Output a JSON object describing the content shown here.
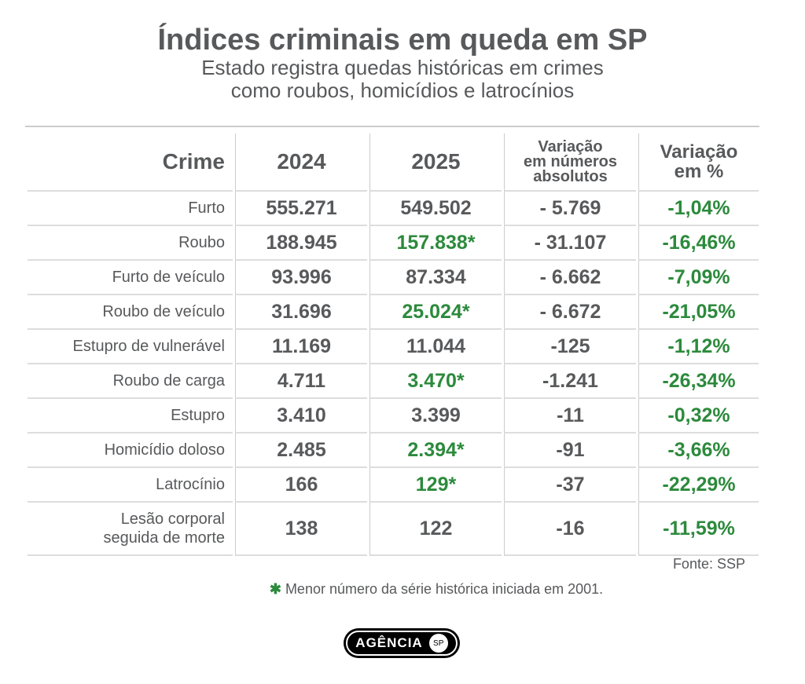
{
  "title": "Índices criminais em queda em SP",
  "subtitle_line1": "Estado registra quedas históricas em crimes",
  "subtitle_line2": "como roubos, homicídios e latrocínios",
  "colors": {
    "text": "#58595b",
    "green": "#2c8a3c"
  },
  "chart_data": {
    "type": "table",
    "headers": [
      "Crime",
      "2024",
      "2025",
      "Variação em números absolutos",
      "Variação em %"
    ],
    "rows": [
      {
        "crime": "Furto",
        "y2024": "555.271",
        "y2025": "549.502",
        "abs": "- 5.769",
        "pct": "-1,04%",
        "record": false
      },
      {
        "crime": "Roubo",
        "y2024": "188.945",
        "y2025": "157.838*",
        "abs": "- 31.107",
        "pct": "-16,46%",
        "record": true
      },
      {
        "crime": "Furto de veículo",
        "y2024": "93.996",
        "y2025": "87.334",
        "abs": "- 6.662",
        "pct": "-7,09%",
        "record": false
      },
      {
        "crime": "Roubo de veículo",
        "y2024": "31.696",
        "y2025": "25.024*",
        "abs": "- 6.672",
        "pct": "-21,05%",
        "record": true
      },
      {
        "crime": "Estupro de vulnerável",
        "y2024": "11.169",
        "y2025": "11.044",
        "abs": "-125",
        "pct": "-1,12%",
        "record": false
      },
      {
        "crime": "Roubo de carga",
        "y2024": "4.711",
        "y2025": "3.470*",
        "abs": "-1.241",
        "pct": "-26,34%",
        "record": true
      },
      {
        "crime": "Estupro",
        "y2024": "3.410",
        "y2025": "3.399",
        "abs": "-11",
        "pct": "-0,32%",
        "record": false
      },
      {
        "crime": "Homicídio doloso",
        "y2024": "2.485",
        "y2025": "2.394*",
        "abs": "-91",
        "pct": "-3,66%",
        "record": true
      },
      {
        "crime": "Latrocínio",
        "y2024": "166",
        "y2025": "129*",
        "abs": "-37",
        "pct": "-22,29%",
        "record": true
      },
      {
        "crime": "Lesão corporal seguida de morte",
        "y2024": "138",
        "y2025": "122",
        "abs": "-16",
        "pct": "-11,59%",
        "record": false
      }
    ]
  },
  "header_abs_lines": [
    "Variação",
    "em números",
    "absolutos"
  ],
  "header_pct_lines": [
    "Variação",
    "em %"
  ],
  "source": "Fonte: SSP",
  "footnote_marker": "✱",
  "footnote": "Menor número da série histórica iniciada em 2001.",
  "logo_text": "AGÊNCIA",
  "logo_badge": "SP"
}
